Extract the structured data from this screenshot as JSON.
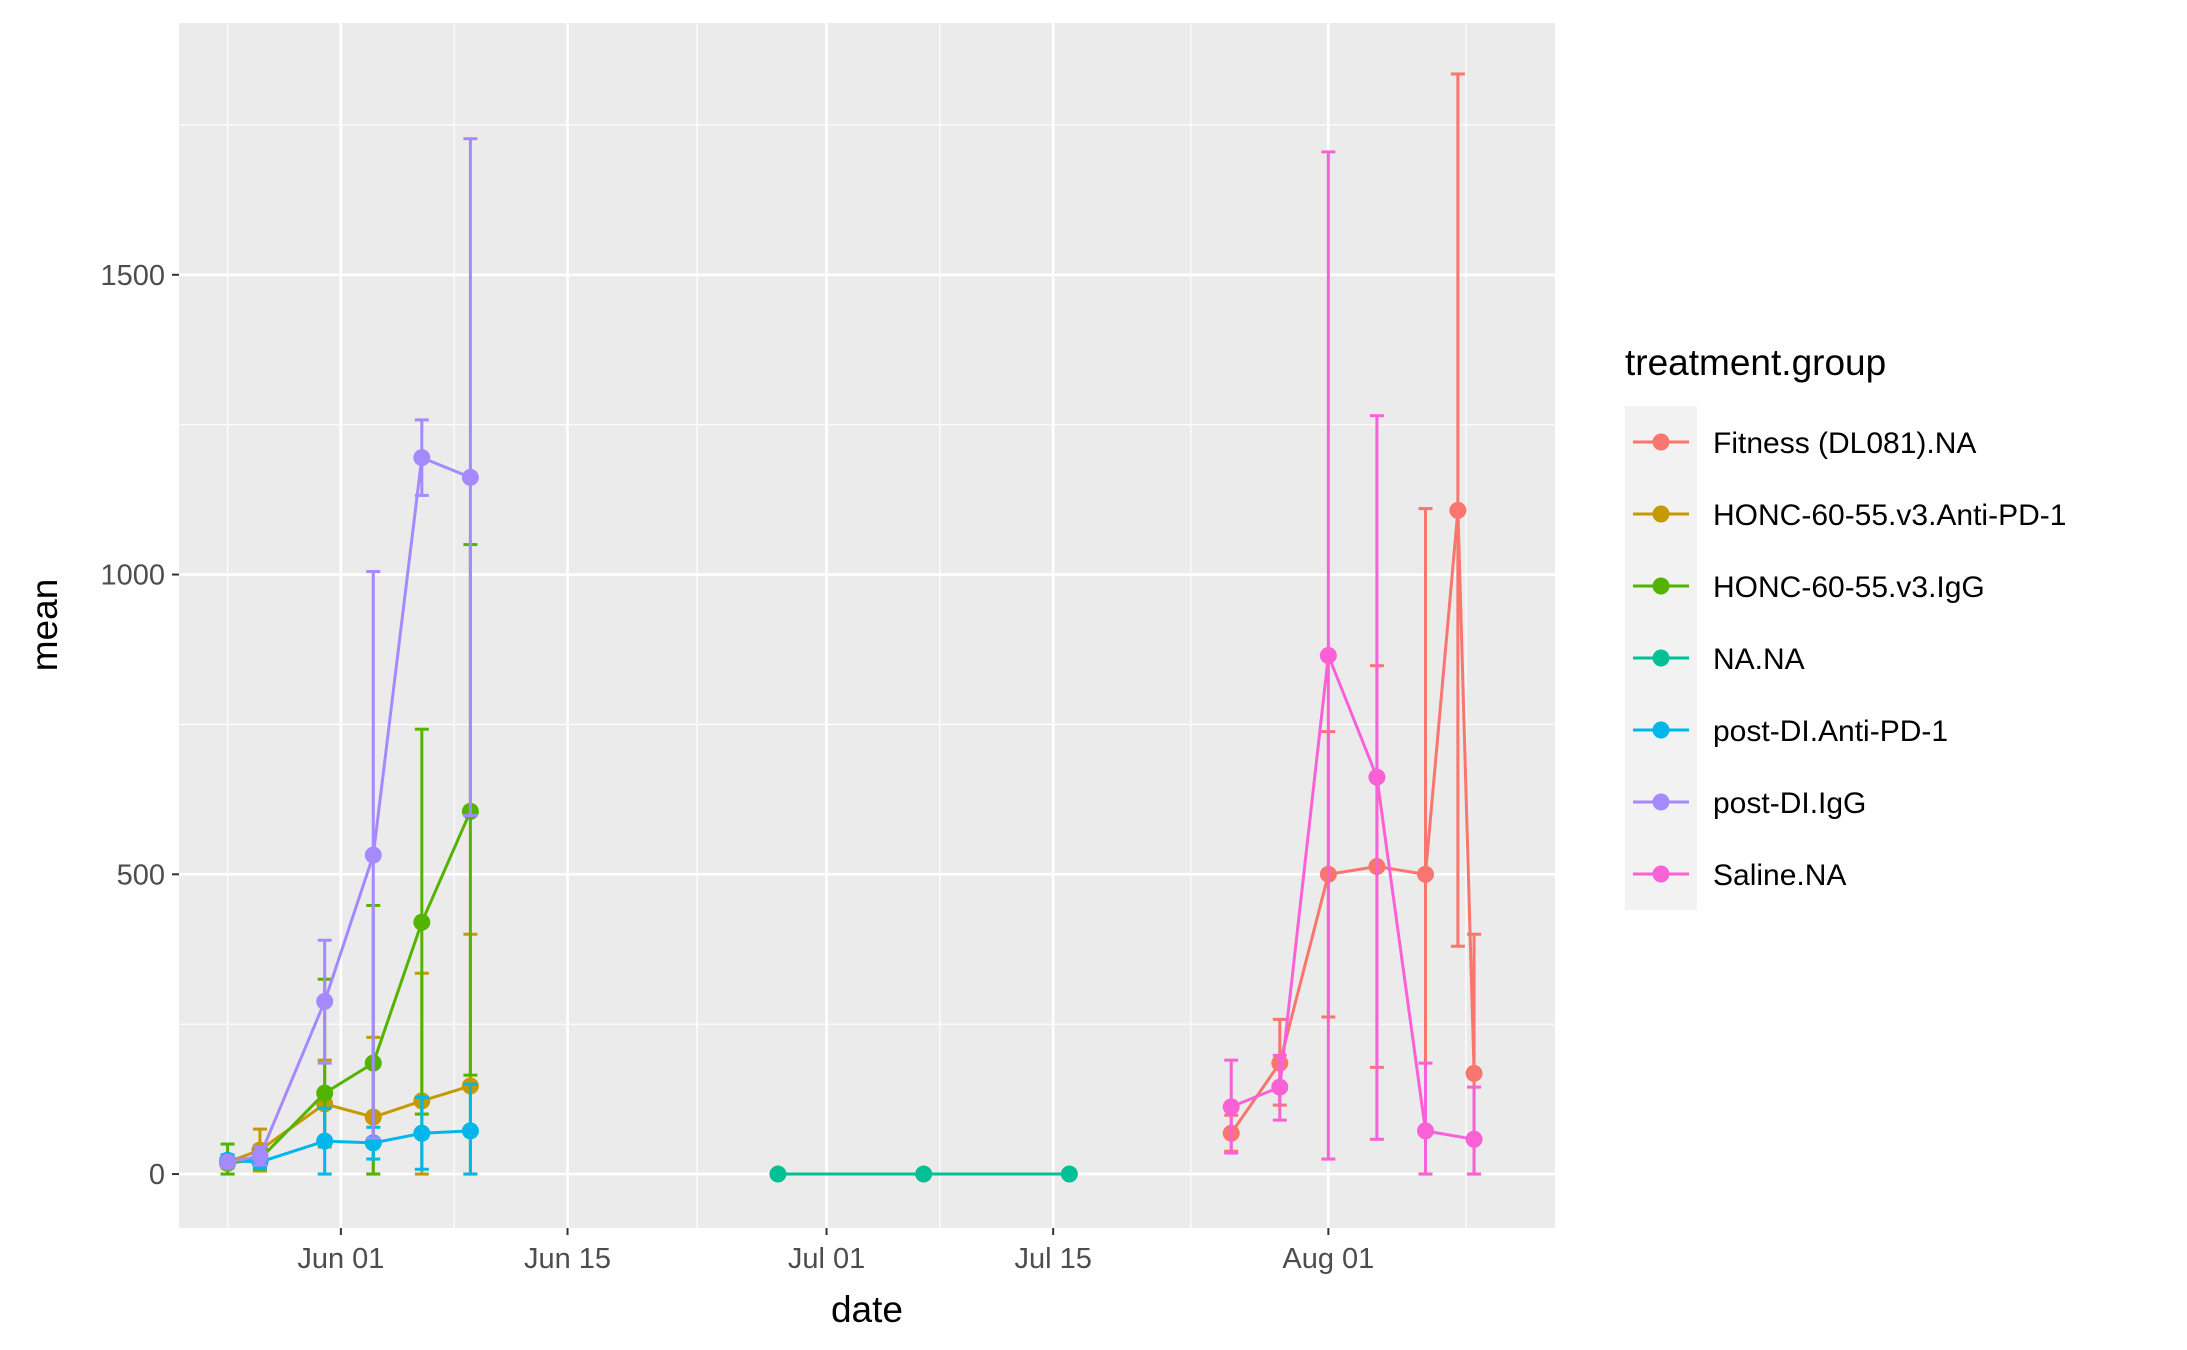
{
  "chart_data": {
    "type": "line",
    "title": "",
    "xlabel": "date",
    "ylabel": "mean",
    "x_range": [
      "2022-05-22",
      "2022-08-15"
    ],
    "ylim": [
      -90,
      1920
    ],
    "x_ticks": [
      {
        "date": "2022-06-01",
        "label": "Jun 01"
      },
      {
        "date": "2022-06-15",
        "label": "Jun 15"
      },
      {
        "date": "2022-07-01",
        "label": "Jul 01"
      },
      {
        "date": "2022-07-15",
        "label": "Jul 15"
      },
      {
        "date": "2022-08-01",
        "label": "Aug 01"
      }
    ],
    "y_ticks": [
      0,
      500,
      1000,
      1500
    ],
    "grid": true,
    "legend": {
      "title": "treatment.group",
      "position": "right"
    },
    "series": [
      {
        "name": "Fitness (DL081).NA",
        "color": "#F8766D",
        "points": [
          {
            "x": "2022-07-26",
            "y": 68,
            "lo": 38,
            "hi": 98
          },
          {
            "x": "2022-07-29",
            "y": 185,
            "lo": 115,
            "hi": 258
          },
          {
            "x": "2022-08-01",
            "y": 500,
            "lo": 262,
            "hi": 738
          },
          {
            "x": "2022-08-04",
            "y": 513,
            "lo": 178,
            "hi": 848
          },
          {
            "x": "2022-08-07",
            "y": 500,
            "lo": 0,
            "hi": 1110
          },
          {
            "x": "2022-08-09",
            "y": 1107,
            "lo": 380,
            "hi": 1835
          },
          {
            "x": "2022-08-10",
            "y": 168,
            "lo": 0,
            "hi": 400
          }
        ]
      },
      {
        "name": "HONC-60-55.v3.Anti-PD-1",
        "color": "#C49A00",
        "points": [
          {
            "x": "2022-05-25",
            "y": 20,
            "lo": 10,
            "hi": 30
          },
          {
            "x": "2022-05-27",
            "y": 40,
            "lo": 5,
            "hi": 75
          },
          {
            "x": "2022-05-31",
            "y": 117,
            "lo": 45,
            "hi": 190
          },
          {
            "x": "2022-06-03",
            "y": 95,
            "lo": 0,
            "hi": 228
          },
          {
            "x": "2022-06-06",
            "y": 122,
            "lo": 0,
            "hi": 335
          },
          {
            "x": "2022-06-09",
            "y": 147,
            "lo": 0,
            "hi": 400
          }
        ]
      },
      {
        "name": "HONC-60-55.v3.IgG",
        "color": "#53B400",
        "points": [
          {
            "x": "2022-05-25",
            "y": 18,
            "lo": 0,
            "hi": 50
          },
          {
            "x": "2022-05-27",
            "y": 25,
            "lo": 8,
            "hi": 42
          },
          {
            "x": "2022-05-31",
            "y": 135,
            "lo": 60,
            "hi": 325
          },
          {
            "x": "2022-06-03",
            "y": 185,
            "lo": 0,
            "hi": 448
          },
          {
            "x": "2022-06-06",
            "y": 420,
            "lo": 100,
            "hi": 742
          },
          {
            "x": "2022-06-09",
            "y": 605,
            "lo": 165,
            "hi": 1050
          }
        ]
      },
      {
        "name": "NA.NA",
        "color": "#00C094",
        "points": [
          {
            "x": "2022-06-28",
            "y": 0,
            "lo": 0,
            "hi": 0
          },
          {
            "x": "2022-07-07",
            "y": 0,
            "lo": 0,
            "hi": 0
          },
          {
            "x": "2022-07-16",
            "y": 0,
            "lo": 0,
            "hi": 0
          }
        ]
      },
      {
        "name": "post-DI.Anti-PD-1",
        "color": "#00B6EB",
        "points": [
          {
            "x": "2022-05-25",
            "y": 23,
            "lo": 15,
            "hi": 32
          },
          {
            "x": "2022-05-27",
            "y": 20,
            "lo": 10,
            "hi": 30
          },
          {
            "x": "2022-05-31",
            "y": 55,
            "lo": 0,
            "hi": 110
          },
          {
            "x": "2022-06-03",
            "y": 52,
            "lo": 25,
            "hi": 78
          },
          {
            "x": "2022-06-06",
            "y": 68,
            "lo": 8,
            "hi": 128
          },
          {
            "x": "2022-06-09",
            "y": 72,
            "lo": 0,
            "hi": 150
          }
        ]
      },
      {
        "name": "post-DI.IgG",
        "color": "#A58AFF",
        "points": [
          {
            "x": "2022-05-25",
            "y": 20,
            "lo": 12,
            "hi": 28
          },
          {
            "x": "2022-05-27",
            "y": 30,
            "lo": 15,
            "hi": 45
          },
          {
            "x": "2022-05-31",
            "y": 288,
            "lo": 185,
            "hi": 390
          },
          {
            "x": "2022-06-03",
            "y": 532,
            "lo": 60,
            "hi": 1005
          },
          {
            "x": "2022-06-06",
            "y": 1195,
            "lo": 1132,
            "hi": 1258
          },
          {
            "x": "2022-06-09",
            "y": 1162,
            "lo": 598,
            "hi": 1727
          }
        ]
      },
      {
        "name": "Saline.NA",
        "color": "#FB61D7",
        "points": [
          {
            "x": "2022-07-26",
            "y": 112,
            "lo": 35,
            "hi": 190
          },
          {
            "x": "2022-07-29",
            "y": 145,
            "lo": 90,
            "hi": 198
          },
          {
            "x": "2022-08-01",
            "y": 865,
            "lo": 25,
            "hi": 1705
          },
          {
            "x": "2022-08-04",
            "y": 662,
            "lo": 58,
            "hi": 1265
          },
          {
            "x": "2022-08-07",
            "y": 72,
            "lo": 0,
            "hi": 185
          },
          {
            "x": "2022-08-10",
            "y": 58,
            "lo": 0,
            "hi": 145
          }
        ]
      }
    ]
  }
}
